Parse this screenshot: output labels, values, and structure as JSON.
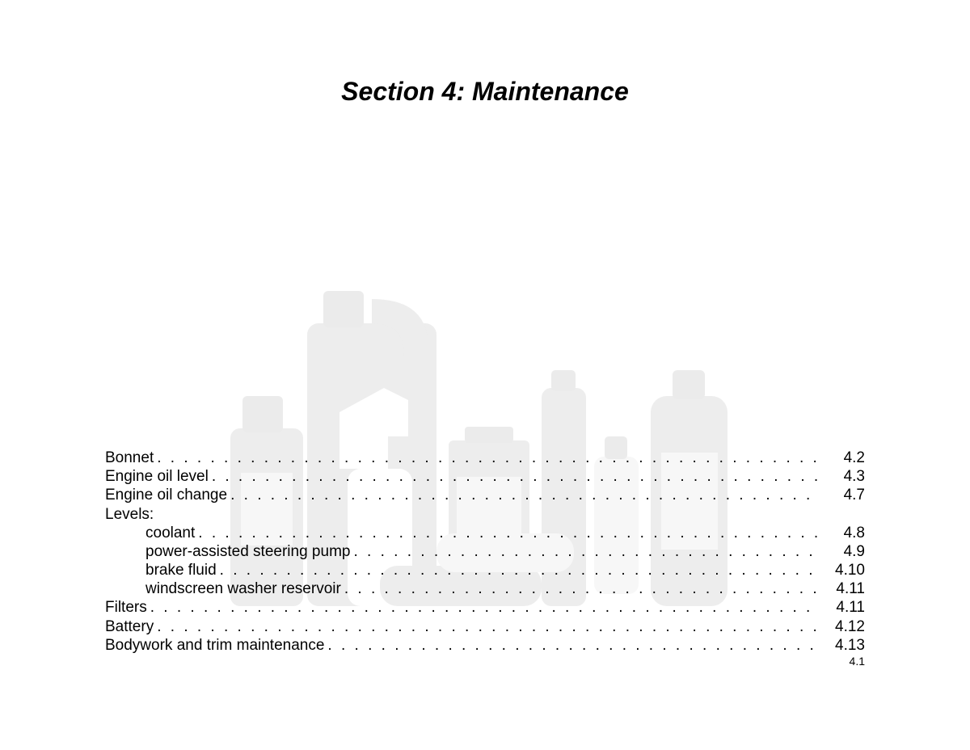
{
  "title": "Section 4: Maintenance",
  "footer_page": "4.1",
  "toc": [
    {
      "label": "Bonnet",
      "page": "4.2",
      "indent": false
    },
    {
      "label": "Engine oil level",
      "page": "4.3",
      "indent": false
    },
    {
      "label": "Engine oil change",
      "page": "4.7",
      "indent": false
    },
    {
      "label": "Levels:",
      "page": "",
      "indent": false,
      "header_only": true
    },
    {
      "label": "coolant",
      "page": "4.8",
      "indent": true
    },
    {
      "label": "power-assisted steering pump",
      "page": "4.9",
      "indent": true
    },
    {
      "label": "brake fluid",
      "page": "4.10",
      "indent": true
    },
    {
      "label": "windscreen washer reservoir",
      "page": "4.11",
      "indent": true
    },
    {
      "label": "Filters",
      "page": "4.11",
      "indent": false
    },
    {
      "label": "Battery",
      "page": "4.12",
      "indent": false
    },
    {
      "label": "Bodywork and trim maintenance",
      "page": "4.13",
      "indent": false
    }
  ],
  "background": {
    "fill_body": "#555555",
    "fill_cap": "#444444",
    "fill_label": "#bbbbbb",
    "fill_spray": "#ffffff",
    "stroke": "#333333"
  }
}
